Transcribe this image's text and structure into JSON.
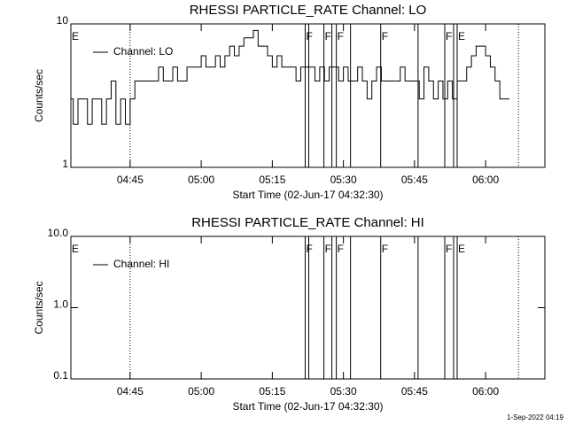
{
  "chart_data": [
    {
      "type": "line",
      "title": "RHESSI PARTICLE_RATE Channel: LO",
      "xlabel": "Start Time (02-Jun-17 04:32:30)",
      "ylabel": "Counts/sec",
      "log_y": true,
      "grid": false,
      "legend": "upper left",
      "step": true,
      "xlim": [
        "04:32:30",
        "06:12:30"
      ],
      "xticks": [
        "04:45",
        "05:00",
        "05:15",
        "05:30",
        "05:45",
        "06:00"
      ],
      "ylim": [
        1,
        10
      ],
      "yticks": [
        1,
        10
      ],
      "x": [
        "04:32:30",
        "04:33",
        "04:34",
        "04:35",
        "04:36",
        "04:37",
        "04:38",
        "04:39",
        "04:40",
        "04:41",
        "04:42",
        "04:43",
        "04:44",
        "04:45",
        "04:46",
        "04:47",
        "04:48",
        "04:49",
        "04:50",
        "04:51",
        "04:52",
        "04:53",
        "04:54",
        "04:55",
        "04:56",
        "04:57",
        "04:58",
        "04:59",
        "05:00",
        "05:01",
        "05:02",
        "05:03",
        "05:04",
        "05:05",
        "05:06",
        "05:07",
        "05:08",
        "05:09",
        "05:10",
        "05:11",
        "05:12",
        "05:13",
        "05:14",
        "05:15",
        "05:16",
        "05:17",
        "05:18",
        "05:19",
        "05:20",
        "05:21",
        "05:22",
        "05:23",
        "05:24",
        "05:25",
        "05:26",
        "05:27",
        "05:28",
        "05:29",
        "05:30",
        "05:31",
        "05:32",
        "05:33",
        "05:34",
        "05:35",
        "05:36",
        "05:37",
        "05:38",
        "05:39",
        "05:40",
        "05:41",
        "05:42",
        "05:43",
        "05:44",
        "05:45",
        "05:46",
        "05:47",
        "05:48",
        "05:49",
        "05:50",
        "05:51",
        "05:52",
        "05:53",
        "05:54",
        "05:55",
        "05:56",
        "05:57",
        "05:58",
        "05:59",
        "06:00",
        "06:01",
        "06:02",
        "06:03",
        "06:04",
        "06:05"
      ],
      "series": [
        {
          "name": "Channel: LO",
          "color": "#000000",
          "values": [
            3,
            2,
            3,
            3,
            2,
            3,
            3,
            2,
            3,
            4,
            2,
            3,
            2,
            3,
            4,
            4,
            4,
            4,
            4,
            5,
            4,
            4,
            5,
            4,
            4,
            5,
            5,
            5,
            6,
            5,
            5,
            6,
            5,
            6,
            7,
            6,
            7,
            8,
            8,
            9,
            7,
            7,
            6,
            5,
            6,
            5,
            5,
            5,
            4,
            5,
            5,
            5,
            4,
            5,
            4,
            5,
            5,
            4,
            5,
            4,
            4,
            5,
            4,
            3,
            4,
            5,
            4,
            4,
            4,
            4,
            5,
            4,
            4,
            4,
            3,
            5,
            4,
            3,
            4,
            3,
            4,
            3,
            4,
            4,
            5,
            6,
            7,
            7,
            6,
            5,
            4,
            3,
            3,
            3
          ]
        }
      ],
      "flags_solid": [
        "05:21:56",
        "05:22:41",
        "05:25:53",
        "05:27:34",
        "05:28:30",
        "05:31:30",
        "05:37:52",
        "05:45:45",
        "05:51:23",
        "05:53:15",
        "05:54:00"
      ],
      "flags_dotted": [
        "04:45:00",
        "06:06:56"
      ],
      "flag_labels": [
        {
          "time": "04:32:30",
          "label": "E"
        },
        {
          "time": "05:21:56",
          "label": "F"
        },
        {
          "time": "05:25:53",
          "label": "F"
        },
        {
          "time": "05:28:30",
          "label": "F"
        },
        {
          "time": "05:37:52",
          "label": "F"
        },
        {
          "time": "05:51:23",
          "label": "F"
        },
        {
          "time": "05:54:00",
          "label": "E"
        }
      ]
    },
    {
      "type": "line",
      "title": "RHESSI PARTICLE_RATE Channel: HI",
      "xlabel": "Start Time (02-Jun-17 04:32:30)",
      "ylabel": "Counts/sec",
      "log_y": true,
      "grid": false,
      "legend": "upper left",
      "step": true,
      "xlim": [
        "04:32:30",
        "06:12:30"
      ],
      "xticks": [
        "04:45",
        "05:00",
        "05:15",
        "05:30",
        "05:45",
        "06:00"
      ],
      "ylim": [
        0.1,
        10
      ],
      "yticks": [
        0.1,
        {
          "value": 1,
          "label": "1.0"
        },
        {
          "value": 10,
          "label": "10.0"
        }
      ],
      "series": [
        {
          "name": "Channel: HI",
          "color": "#000000"
        }
      ],
      "flags_solid": [
        "05:21:56",
        "05:22:41",
        "05:25:53",
        "05:27:34",
        "05:28:30",
        "05:31:30",
        "05:37:52",
        "05:45:45",
        "05:51:23",
        "05:53:15",
        "05:54:00"
      ],
      "flags_dotted": [
        "04:45:00",
        "06:06:56"
      ],
      "flag_labels": [
        {
          "time": "04:32:30",
          "label": "E"
        },
        {
          "time": "05:21:56",
          "label": "F"
        },
        {
          "time": "05:25:53",
          "label": "F"
        },
        {
          "time": "05:28:30",
          "label": "F"
        },
        {
          "time": "05:37:52",
          "label": "F"
        },
        {
          "time": "05:51:23",
          "label": "F"
        },
        {
          "time": "05:54:00",
          "label": "E"
        }
      ]
    }
  ],
  "footer": "1-Sep-2022 04:19"
}
